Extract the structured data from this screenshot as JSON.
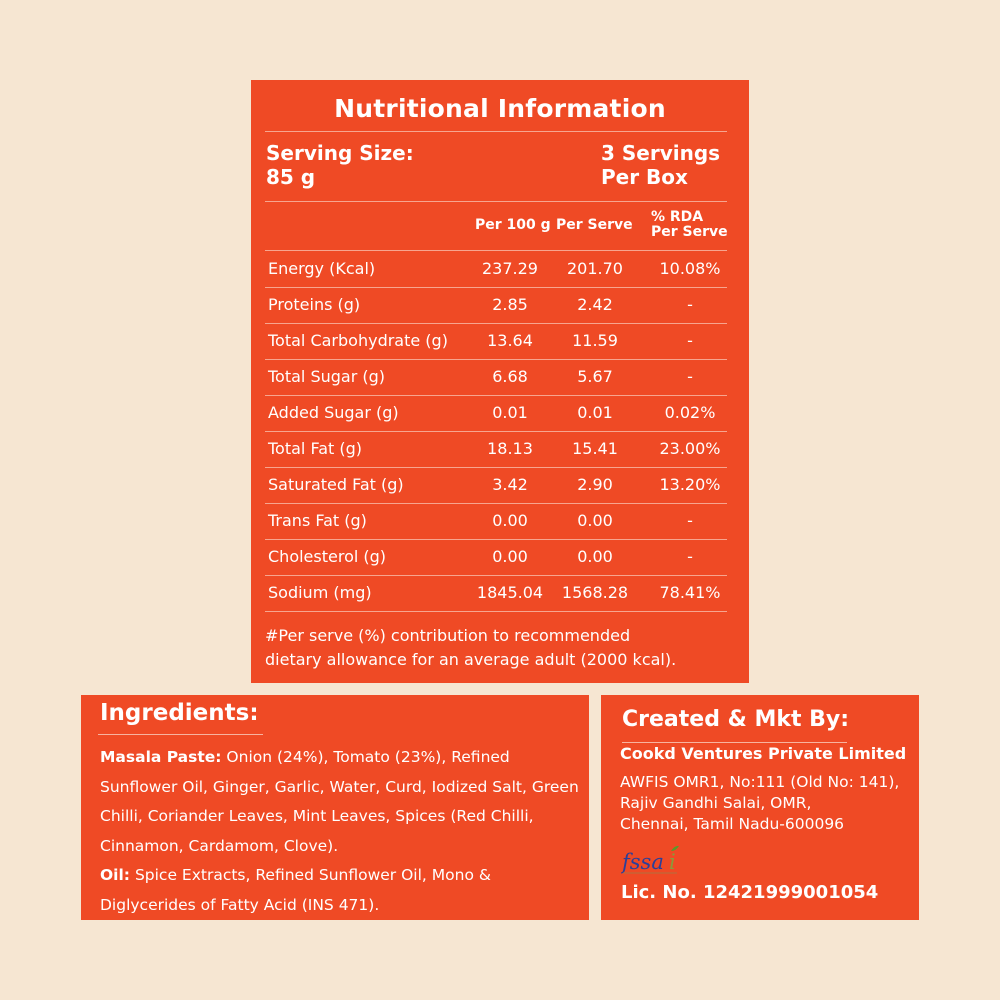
{
  "nutrition": {
    "title": "Nutritional Information",
    "serving_size_label": "Serving Size:",
    "serving_size_value": "85 g",
    "servings_line1": "3 Servings",
    "servings_line2": "Per Box",
    "headers": {
      "per100": "Per 100 g",
      "per_serve": "Per Serve",
      "rda1": "% RDA",
      "rda2": "Per Serve"
    },
    "rows": [
      {
        "name": "Energy (Kcal)",
        "per100": "237.29",
        "serve": "201.70",
        "rda": "10.08%"
      },
      {
        "name": "Proteins (g)",
        "per100": "2.85",
        "serve": "2.42",
        "rda": "-"
      },
      {
        "name": "Total Carbohydrate (g)",
        "per100": "13.64",
        "serve": "11.59",
        "rda": "-"
      },
      {
        "name": "Total Sugar (g)",
        "per100": "6.68",
        "serve": "5.67",
        "rda": "-"
      },
      {
        "name": "Added Sugar (g)",
        "per100": "0.01",
        "serve": "0.01",
        "rda": "0.02%"
      },
      {
        "name": "Total Fat (g)",
        "per100": "18.13",
        "serve": "15.41",
        "rda": "23.00%"
      },
      {
        "name": "Saturated Fat (g)",
        "per100": "3.42",
        "serve": "2.90",
        "rda": "13.20%"
      },
      {
        "name": "Trans Fat (g)",
        "per100": "0.00",
        "serve": "0.00",
        "rda": "-"
      },
      {
        "name": "Cholesterol (g)",
        "per100": "0.00",
        "serve": "0.00",
        "rda": "-"
      },
      {
        "name": "Sodium (mg)",
        "per100": "1845.04",
        "serve": "1568.28",
        "rda": "78.41%"
      }
    ],
    "footnote1": "#Per serve (%) contribution to recommended",
    "footnote2": "dietary allowance for an average adult (2000 kcal)."
  },
  "ingredients": {
    "title": "Ingredients:",
    "masala_label": "Masala Paste:",
    "masala_text": " Onion (24%), Tomato (23%), Refined Sunflower Oil, Ginger, Garlic, Water, Curd, Iodized Salt, Green Chilli, Coriander Leaves, Mint Leaves, Spices (Red Chilli, Cinnamon, Cardamom, Clove).",
    "oil_label": "Oil:",
    "oil_text": " Spice Extracts, Refined Sunflower Oil, Mono & Diglycerides of Fatty Acid (INS 471)."
  },
  "marketer": {
    "title": "Created & Mkt By:",
    "company": "Cookd Ventures Private Limited",
    "address1": "AWFIS OMR1, No:111 (Old No: 141),",
    "address2": "Rajiv Gandhi Salai, OMR,",
    "address3": "Chennai, Tamil Nadu-600096",
    "logo": "fssai",
    "license": "Lic. No. 12421999001054"
  },
  "colors": {
    "background": "#f6e6d2",
    "panel": "#ef4a25",
    "text": "#ffffff",
    "fssai_blue": "#2a3f9a",
    "fssai_green": "#5a9a2a"
  }
}
